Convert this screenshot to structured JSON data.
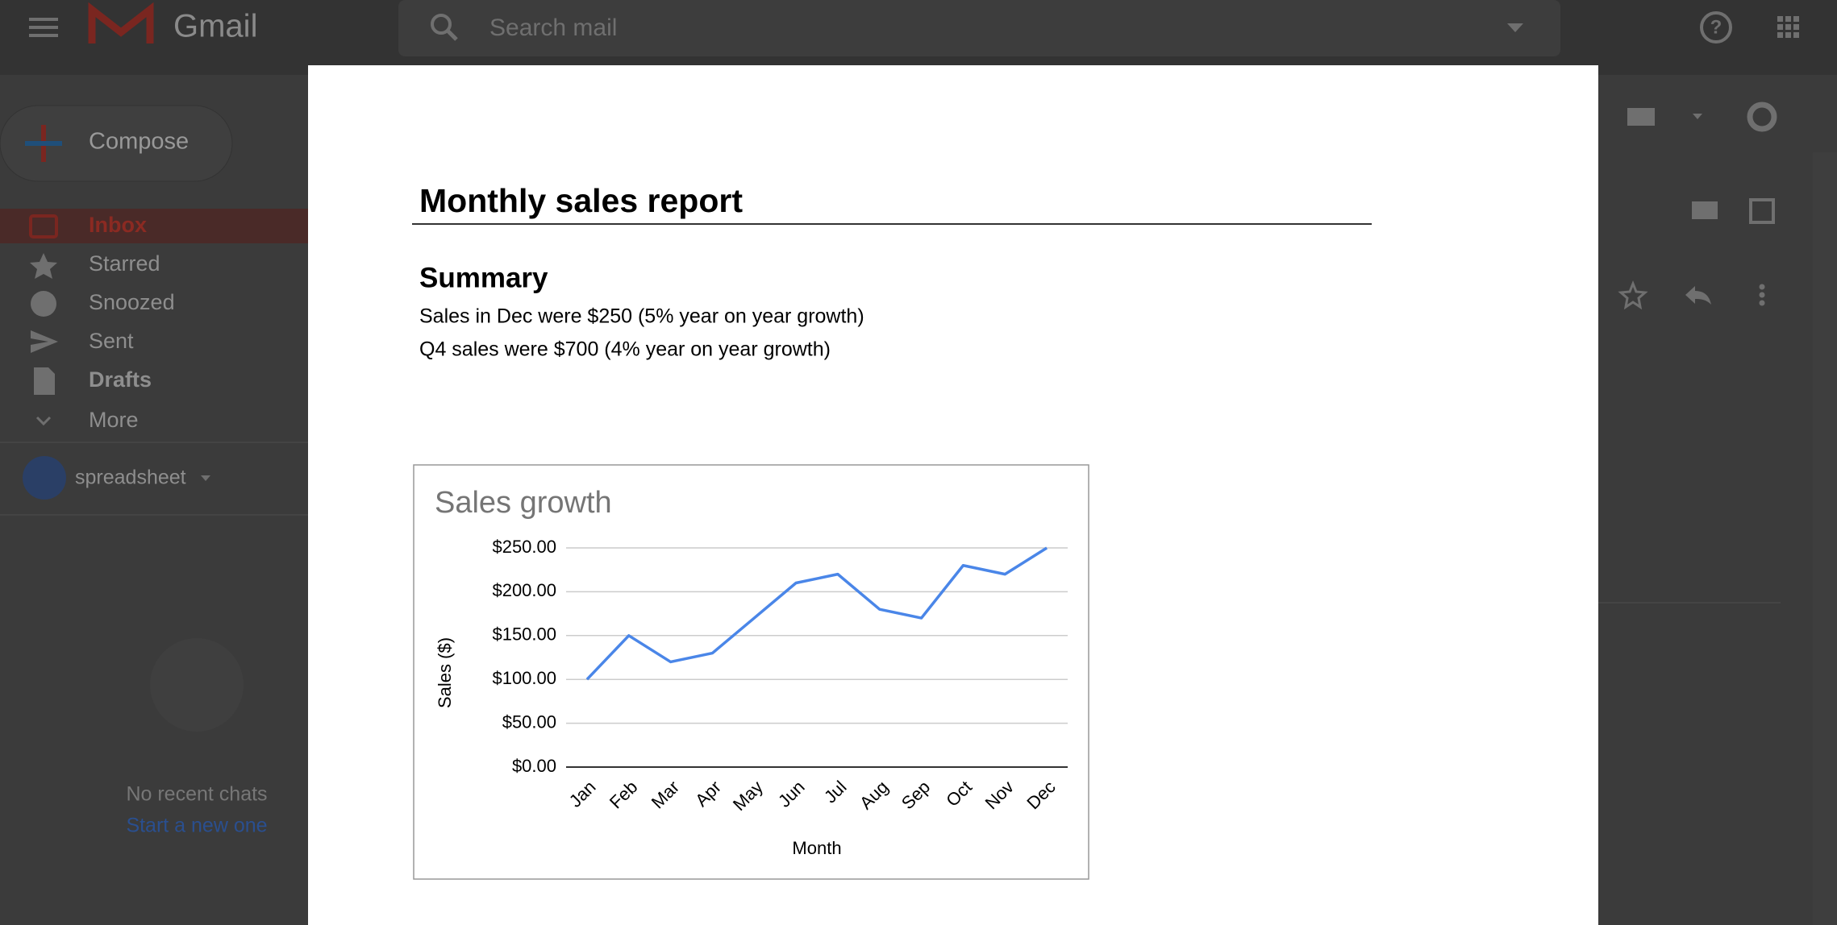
{
  "gmail": {
    "app_name": "Gmail",
    "search_placeholder": "Search mail",
    "compose": "Compose",
    "nav": [
      "Inbox",
      "Starred",
      "Snoozed",
      "Sent",
      "Drafts",
      "More"
    ],
    "account": "spreadsheet",
    "chat_empty": "No recent chats",
    "chat_start": "Start a new one"
  },
  "document": {
    "title": "Monthly sales report",
    "section": "Summary",
    "lines": [
      "Sales in Dec were $250 (5% year on year growth)",
      "Q4 sales were $700 (4% year on year growth)"
    ]
  },
  "chart_data": {
    "type": "line",
    "title": "Sales growth",
    "x_label": "Month",
    "y_label": "Sales ($)",
    "categories": [
      "Jan",
      "Feb",
      "Mar",
      "Apr",
      "May",
      "Jun",
      "Jul",
      "Aug",
      "Sep",
      "Oct",
      "Nov",
      "Dec"
    ],
    "series": [
      {
        "name": "Sales",
        "color": "#4a86e8",
        "values": [
          100,
          150,
          120,
          130,
          170,
          210,
          220,
          180,
          170,
          230,
          220,
          250
        ]
      }
    ],
    "ylim": [
      0,
      250
    ],
    "yticks": [
      {
        "value": 0,
        "label": "$0.00"
      },
      {
        "value": 50,
        "label": "$50.00"
      },
      {
        "value": 100,
        "label": "$100.00"
      },
      {
        "value": 150,
        "label": "$150.00"
      },
      {
        "value": 200,
        "label": "$200.00"
      },
      {
        "value": 250,
        "label": "$250.00"
      }
    ],
    "grid": true
  }
}
